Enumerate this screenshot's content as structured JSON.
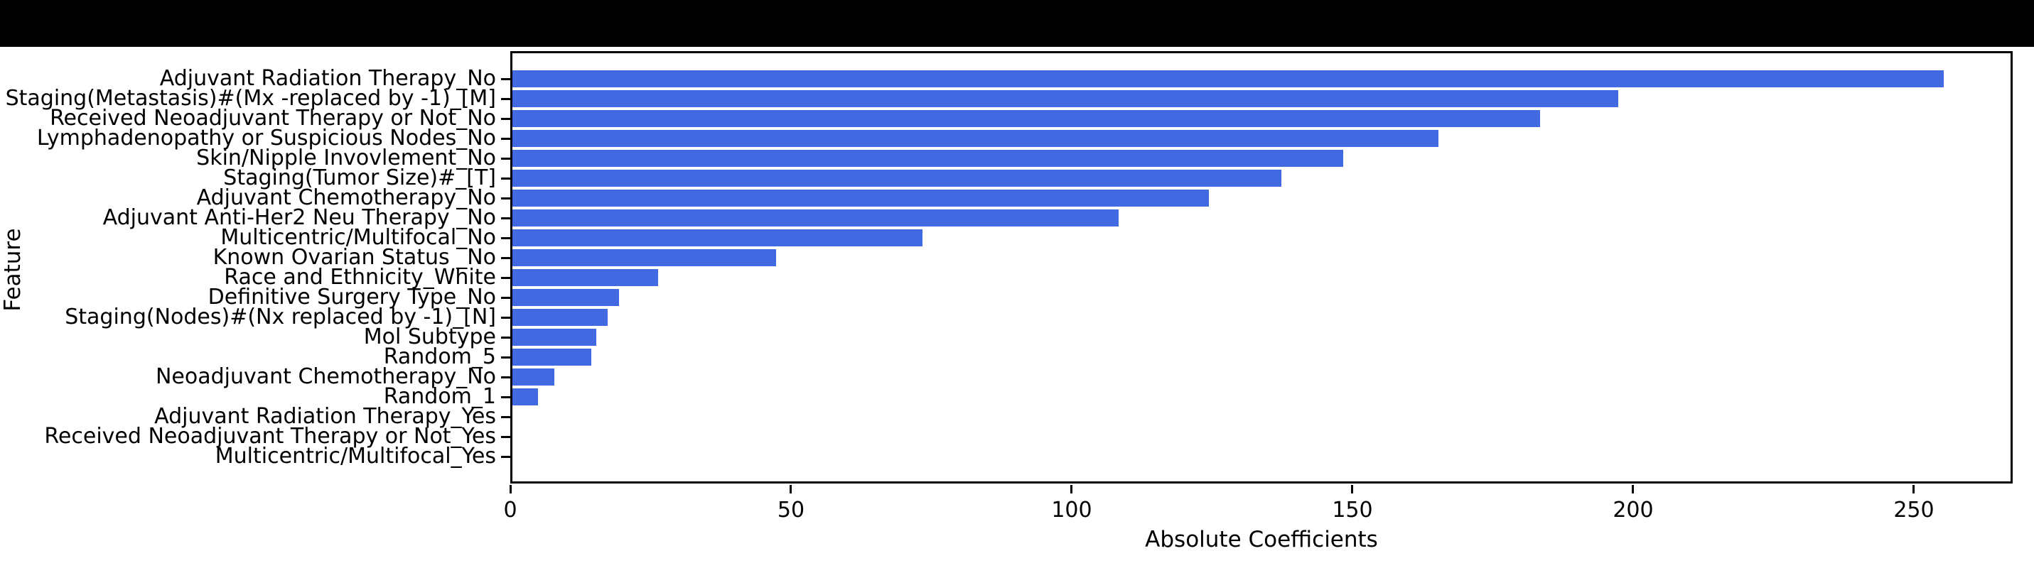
{
  "figure": {
    "background_color": "#ffffff",
    "top_band_color": "#000000",
    "text_color": "#000000"
  },
  "chart_data": {
    "type": "bar",
    "orientation": "horizontal",
    "title": "",
    "xlabel": "Absolute Coefficients",
    "ylabel": "Feature",
    "xlim": [
      0,
      267.6
    ],
    "x_ticks": [
      0,
      50,
      100,
      150,
      200,
      250
    ],
    "grid": false,
    "legend": false,
    "bar_color": "#4169e1",
    "categories": [
      "Adjuvant Radiation Therapy_No",
      "Staging(Metastasis)#(Mx -replaced by -1)_[M]",
      "Received Neoadjuvant Therapy or Not_No",
      "Lymphadenopathy or Suspicious Nodes_No",
      "Skin/Nipple Invovlement_No",
      "Staging(Tumor Size)#_[T]",
      "Adjuvant Chemotherapy_No",
      "Adjuvant Anti-Her2 Neu Therapy _No",
      "Multicentric/Multifocal_No",
      "Known Ovarian Status _No",
      "Race and Ethnicity_White",
      "Definitive Surgery Type_No",
      "Staging(Nodes)#(Nx replaced by -1)_[N]",
      "Mol Subtype",
      "Random_5",
      "Neoadjuvant Chemotherapy_No",
      "Random_1",
      "Adjuvant Radiation Therapy_Yes",
      "Received Neoadjuvant Therapy or Not_Yes",
      "Multicentric/Multifocal_Yes"
    ],
    "values": [
      255,
      197,
      183,
      165,
      148,
      137,
      124,
      108,
      73,
      47,
      26,
      19,
      17,
      15,
      14,
      7.5,
      4.6,
      0,
      0,
      0
    ]
  }
}
